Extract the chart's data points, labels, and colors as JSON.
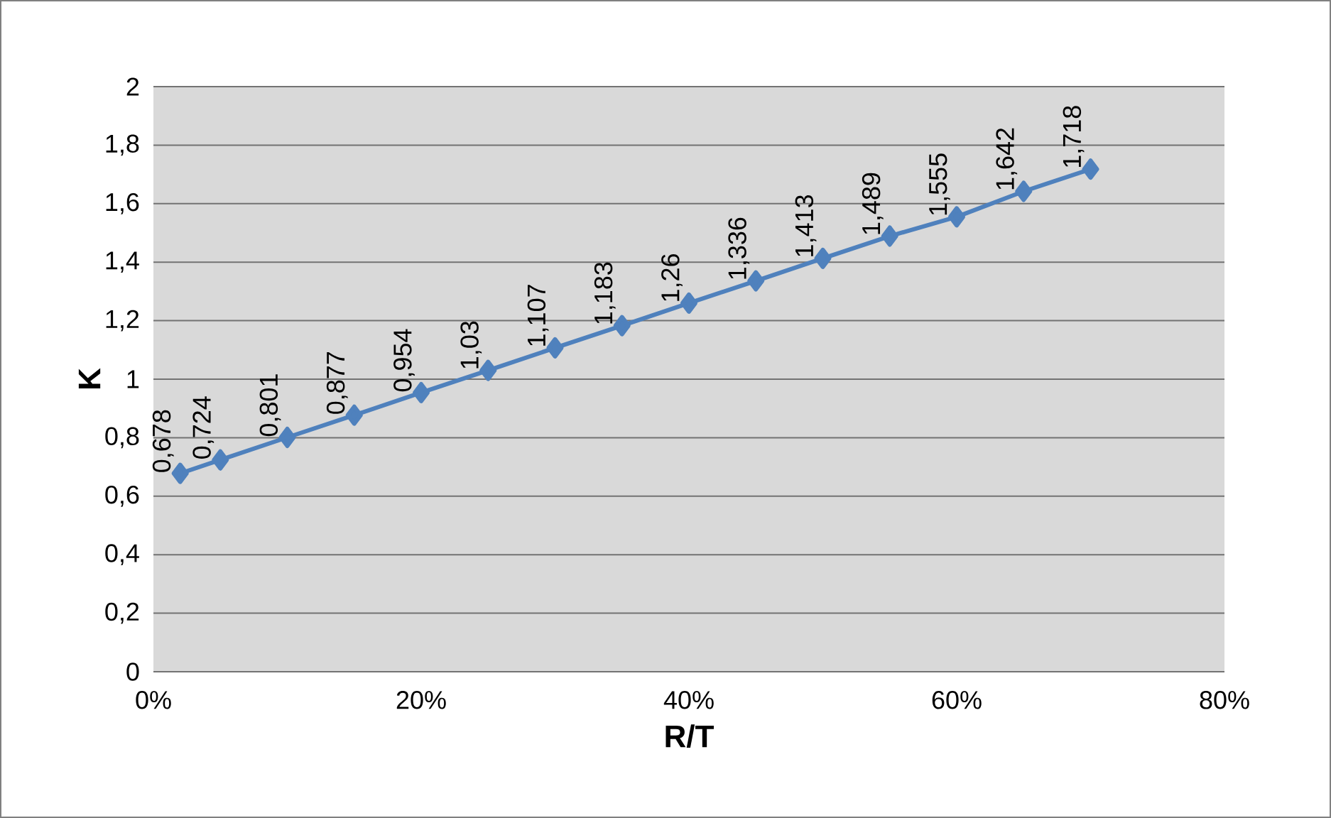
{
  "chart_data": {
    "type": "line",
    "xlabel": "R/T",
    "ylabel": "K",
    "x": [
      2,
      5,
      10,
      15,
      20,
      25,
      30,
      35,
      40,
      45,
      50,
      55,
      60,
      65,
      70
    ],
    "series": [
      {
        "color": "#4f81bd",
        "values": [
          0.678,
          0.724,
          0.801,
          0.877,
          0.954,
          1.03,
          1.107,
          1.183,
          1.26,
          1.336,
          1.413,
          1.489,
          1.555,
          1.642,
          1.718
        ],
        "value_labels": [
          "0,678",
          "0,724",
          "0,801",
          "0,877",
          "0,954",
          "1,03",
          "1,107",
          "1,183",
          "1,26",
          "1,336",
          "1,413",
          "1,489",
          "1,555",
          "1,642",
          "1,718"
        ]
      }
    ],
    "xlim": [
      0,
      80
    ],
    "xticks": [
      {
        "value": 0,
        "label": "0%"
      },
      {
        "value": 20,
        "label": "20%"
      },
      {
        "value": 40,
        "label": "40%"
      },
      {
        "value": 60,
        "label": "60%"
      },
      {
        "value": 80,
        "label": "80%"
      }
    ],
    "ylim": [
      0,
      2
    ],
    "yticks": [
      0,
      {
        "value": 0.2,
        "label": "0,2"
      },
      {
        "value": 0.4,
        "label": "0,4"
      },
      {
        "value": 0.6,
        "label": "0,6"
      },
      {
        "value": 0.8,
        "label": "0,8"
      },
      1,
      {
        "value": 1.2,
        "label": "1,2"
      },
      {
        "value": 1.4,
        "label": "1,4"
      },
      {
        "value": 1.6,
        "label": "1,6"
      },
      {
        "value": 1.8,
        "label": "1,8"
      },
      2
    ],
    "grid": "y",
    "marker": "diamond",
    "line_style": "solid"
  }
}
